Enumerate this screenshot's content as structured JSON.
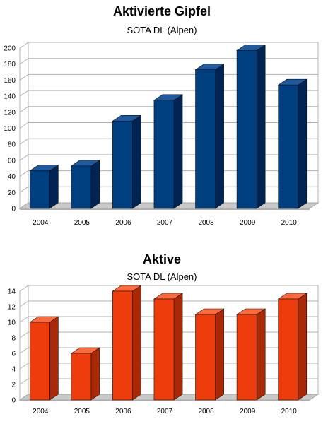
{
  "chart_data": [
    {
      "type": "bar",
      "title": "Aktivierte Gipfel",
      "subtitle": "SOTA DL (Alpen)",
      "categories": [
        "2004",
        "2005",
        "2006",
        "2007",
        "2008",
        "2009",
        "2010"
      ],
      "values": [
        47,
        53,
        109,
        135,
        173,
        197,
        154
      ],
      "ylim": [
        0,
        200
      ],
      "yticks": [
        0,
        20,
        40,
        60,
        80,
        100,
        120,
        140,
        160,
        180,
        200
      ],
      "grid": true,
      "legend": "none",
      "colors": {
        "front": "#003f7f",
        "side": "#002554",
        "top": "#1f5aa0"
      }
    },
    {
      "type": "bar",
      "title": "Aktive",
      "subtitle": "SOTA DL (Alpen)",
      "categories": [
        "2004",
        "2005",
        "2006",
        "2007",
        "2008",
        "2009",
        "2010"
      ],
      "values": [
        10,
        6,
        14,
        13,
        11,
        11,
        13
      ],
      "ylim": [
        0,
        14
      ],
      "yticks": [
        0,
        2,
        4,
        6,
        8,
        10,
        12,
        14
      ],
      "grid": true,
      "legend": "none",
      "colors": {
        "front": "#ee3d0d",
        "side": "#a92806",
        "top": "#ff6a3d"
      }
    }
  ]
}
